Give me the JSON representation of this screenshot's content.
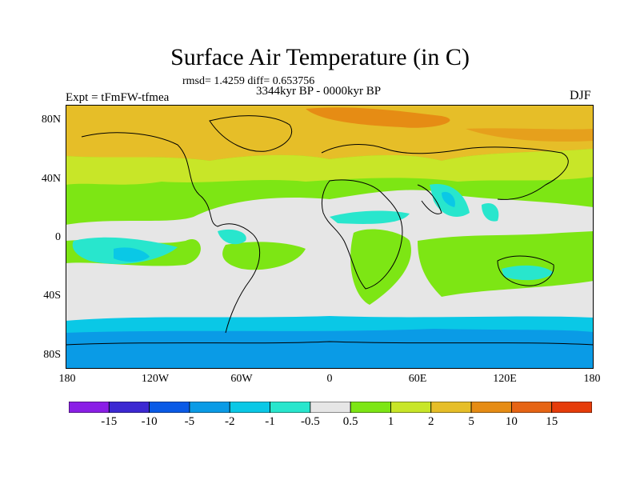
{
  "title": "Surface Air Temperature (in C)",
  "stats": "rmsd= 1.4259 diff= 0.653756",
  "period": "3344kyr BP - 0000kyr BP",
  "experiment": "Expt = tFmFW-tfmea",
  "season": "DJF",
  "lat_ticks": [
    "80N",
    "40N",
    "0",
    "40S",
    "80S"
  ],
  "lon_ticks": [
    "180",
    "120W",
    "60W",
    "0",
    "60E",
    "120E",
    "180"
  ],
  "colorbar": {
    "colors": [
      "#8a1ee6",
      "#3c28d2",
      "#0a5ae6",
      "#0a9be6",
      "#0ac8e6",
      "#28e6cd",
      "#e6e6e6",
      "#7de614",
      "#c8e628",
      "#e6be28",
      "#e68c14",
      "#e66414",
      "#e63c0a"
    ],
    "labels": [
      "-15",
      "-10",
      "-5",
      "-2",
      "-1",
      "-0.5",
      "0.5",
      "1",
      "2",
      "5",
      "10",
      "15"
    ]
  }
}
